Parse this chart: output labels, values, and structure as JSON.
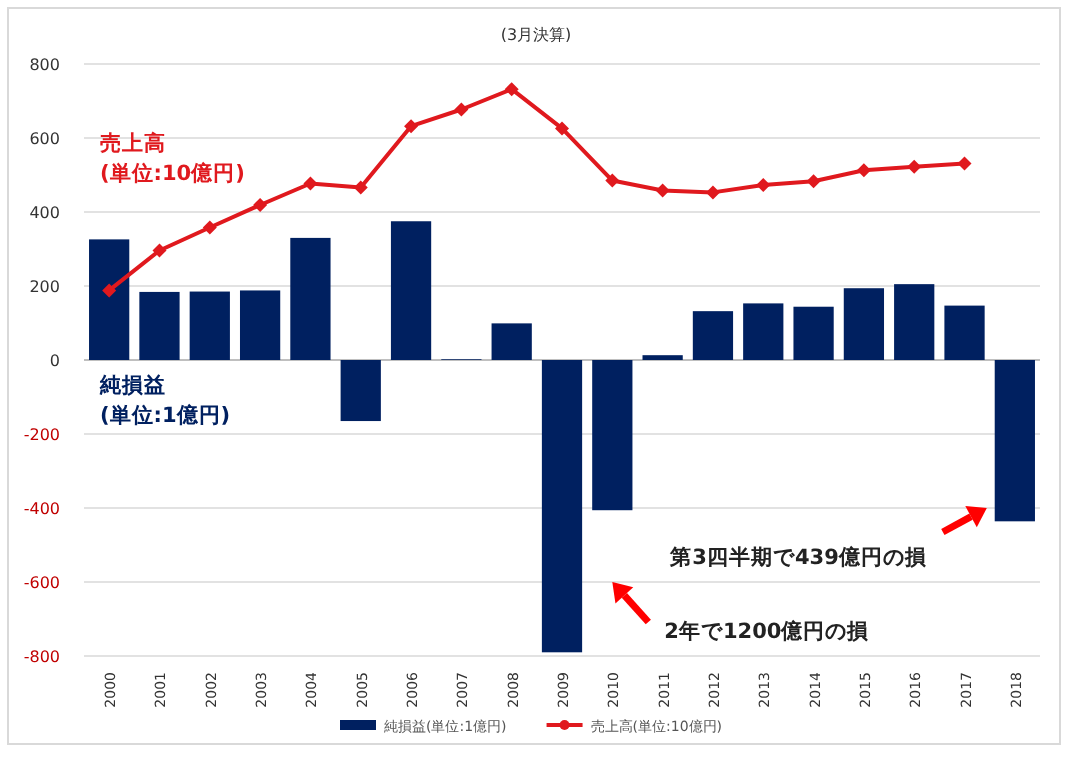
{
  "chart_data": {
    "type": "bar",
    "title": "(3月決算)",
    "categories": [
      "2000",
      "2001",
      "2002",
      "2003",
      "2004",
      "2005",
      "2006",
      "2007",
      "2008",
      "2009",
      "2010",
      "2011",
      "2012",
      "2013",
      "2014",
      "2015",
      "2016",
      "2017",
      "2018"
    ],
    "series": [
      {
        "name": "純損益(単位:1億円)",
        "color": "#002060",
        "values": [
          326,
          184,
          185,
          188,
          330,
          -165,
          375,
          2,
          99,
          -790,
          -406,
          13,
          132,
          153,
          144,
          194,
          205,
          147,
          -436
        ]
      },
      {
        "name": "売上高(単位:10億円)",
        "type": "line",
        "color": "#e0191e",
        "marker": "diamond",
        "values": [
          188,
          296,
          358,
          419,
          477,
          466,
          632,
          677,
          732,
          626,
          485,
          458,
          453,
          473,
          483,
          513,
          522,
          531,
          null
        ]
      }
    ],
    "ylim": [
      -800,
      800
    ],
    "yticks": [
      -800,
      -600,
      -400,
      -200,
      0,
      200,
      400,
      600,
      800
    ],
    "grid": "y",
    "legend": "bottom",
    "annotations": [
      "売上高\n(単位:10億円)",
      "純損益\n(単位:1億円)",
      "2年で1200億円の損",
      "第3四半期で439億円の損"
    ]
  }
}
